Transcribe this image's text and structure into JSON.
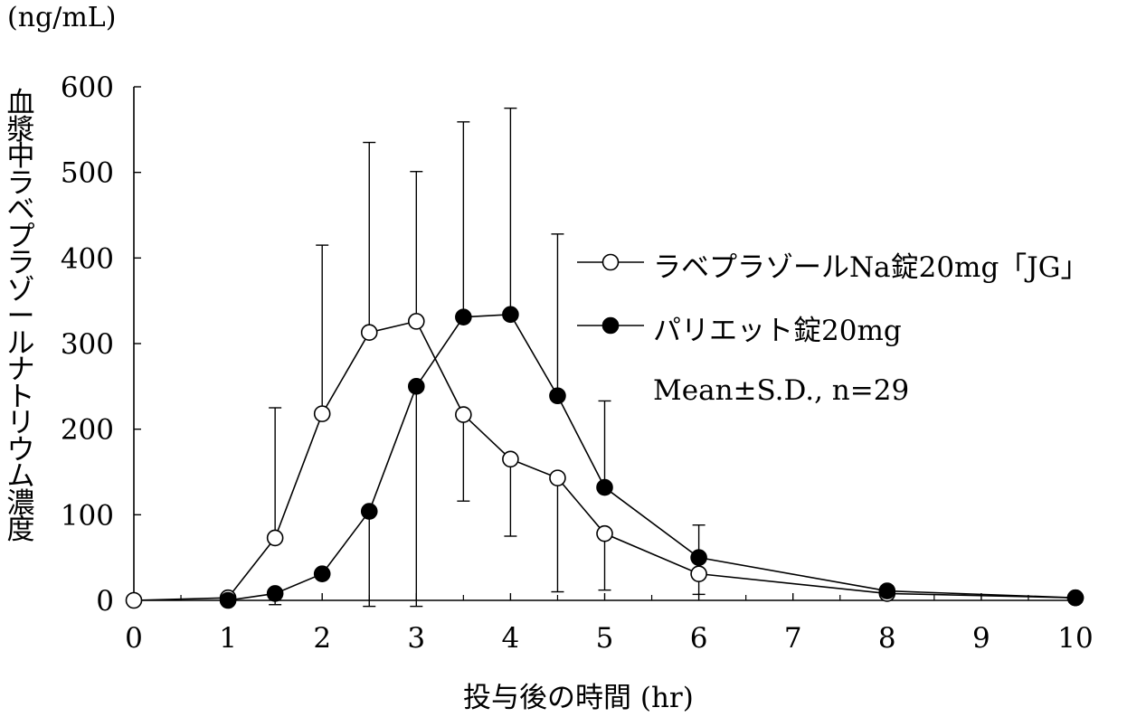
{
  "chart_data": {
    "type": "line",
    "title": "",
    "unit_label": "(ng/mL)",
    "ylabel": "血漿中ラベプラゾールナトリウム濃度",
    "xlabel": "投与後の時間 (hr)",
    "xlim": [
      0,
      10
    ],
    "ylim": [
      0,
      600
    ],
    "xticks": [
      0,
      1,
      2,
      3,
      4,
      5,
      6,
      7,
      8,
      9,
      10
    ],
    "yticks": [
      0,
      100,
      200,
      300,
      400,
      500,
      600
    ],
    "grid": false,
    "legend_position": "right",
    "annotation": "Mean±S.D., n=29",
    "series": [
      {
        "name": "ラベプラゾールNa錠20mg「JG」",
        "marker": "open-circle",
        "x": [
          0,
          1,
          1.5,
          2,
          2.5,
          3,
          3.5,
          4,
          4.5,
          5,
          6,
          8,
          10
        ],
        "y": [
          0,
          3,
          73,
          218,
          313,
          326,
          217,
          165,
          143,
          78,
          31,
          8,
          3
        ],
        "err": [
          0,
          0,
          152,
          197,
          222,
          175,
          0,
          0,
          0,
          0,
          0,
          0,
          0
        ]
      },
      {
        "name": "パリエット錠20mg",
        "marker": "filled-circle",
        "x": [
          1,
          1.5,
          2,
          2.5,
          3,
          3.5,
          4,
          4.5,
          5,
          6,
          8,
          10
        ],
        "y": [
          0,
          8,
          31,
          104,
          250,
          331,
          334,
          239,
          132,
          50,
          11,
          3
        ],
        "err": [
          0,
          0,
          0,
          0,
          0,
          228,
          241,
          189,
          101,
          38,
          6,
          0
        ]
      }
    ],
    "lower_error_bars": [
      {
        "x": 1.5,
        "y": -5
      },
      {
        "x": 2.5,
        "y": -7
      },
      {
        "x": 3,
        "y": -7
      },
      {
        "x": 3.5,
        "y": 116
      },
      {
        "x": 4,
        "y": 75
      },
      {
        "x": 4.5,
        "y": 10
      },
      {
        "x": 5,
        "y": 12
      },
      {
        "x": 6,
        "y": 7
      }
    ]
  },
  "colors": {
    "line": "#000000",
    "background": "#ffffff"
  }
}
